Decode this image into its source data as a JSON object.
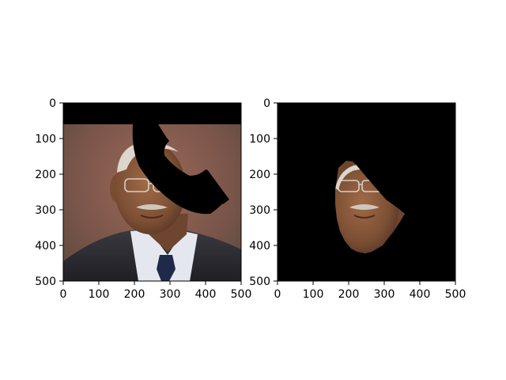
{
  "figure": {
    "background": "#ffffff",
    "panels": [
      {
        "name": "original-image-with-occluder",
        "image_extent": [
          0,
          500,
          500,
          0
        ],
        "x_ticks": [
          "0",
          "100",
          "200",
          "300",
          "400",
          "500"
        ],
        "y_ticks": [
          "0",
          "100",
          "200",
          "300",
          "400",
          "500"
        ],
        "content": "portrait-with-black-top-band-and-phone-shaped-black-occluder"
      },
      {
        "name": "segmented-face-on-black",
        "image_extent": [
          0,
          500,
          500,
          0
        ],
        "x_ticks": [
          "0",
          "100",
          "200",
          "300",
          "400",
          "500"
        ],
        "y_ticks": [
          "0",
          "100",
          "200",
          "300",
          "400",
          "500"
        ],
        "content": "face-region-only-on-black-background"
      }
    ]
  },
  "colors": {
    "black": "#000000",
    "background_brown": "#8a5a4a",
    "skin": "#8e5b3f",
    "hair": "#d9d3c8",
    "suit": "#2f2f34",
    "shirt": "#e7eaf0",
    "tie": "#1f2a4a"
  }
}
